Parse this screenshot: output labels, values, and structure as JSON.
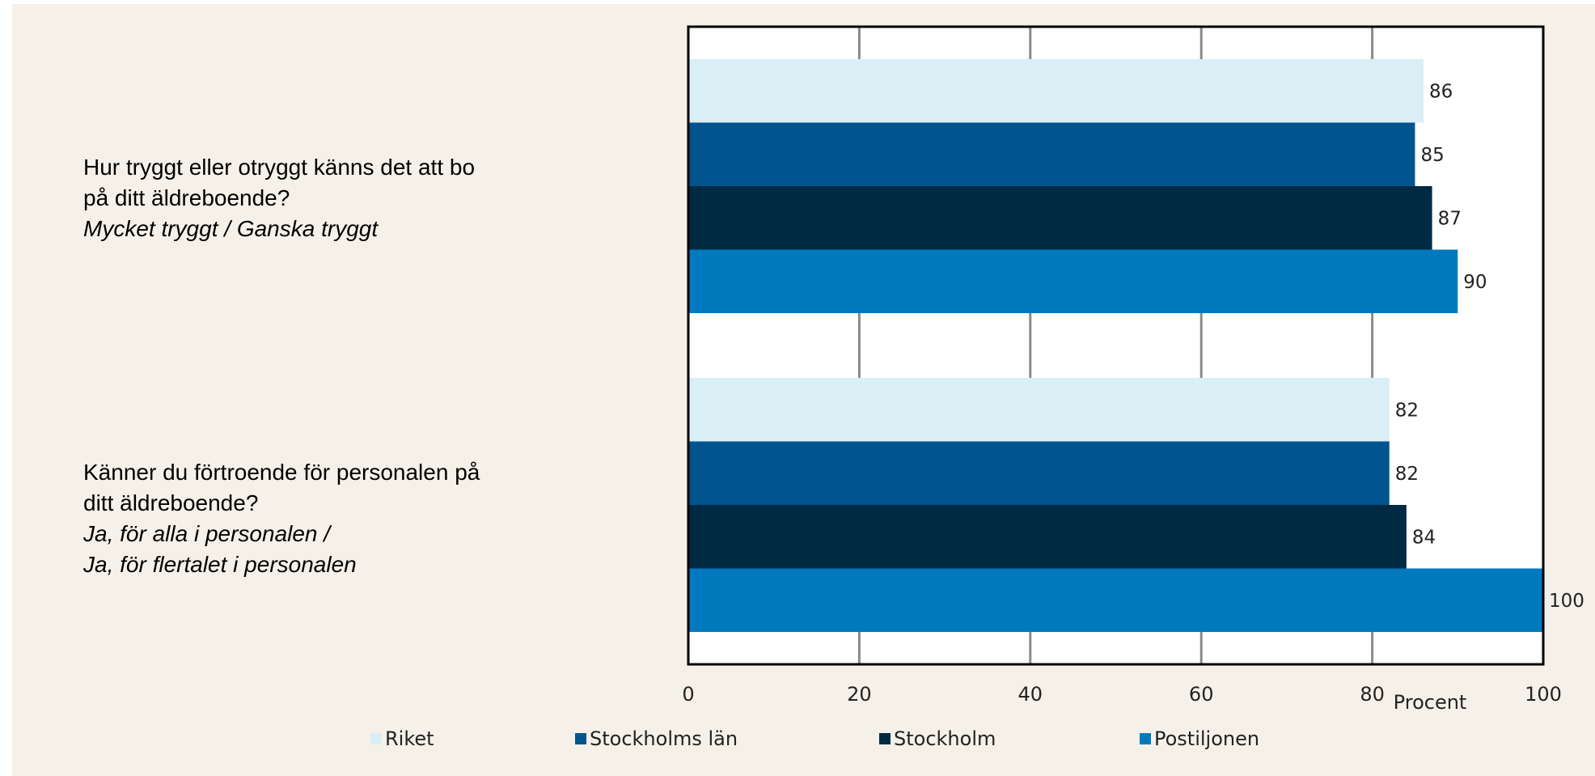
{
  "questions": [
    {
      "lines": [
        "Hur tryggt eller otryggt känns det att bo",
        "på ditt äldreboende?"
      ],
      "answer_lines": [
        "Mycket tryggt / Ganska tryggt"
      ]
    },
    {
      "lines": [
        "Känner du förtroende för personalen på",
        "ditt äldreboende?"
      ],
      "answer_lines": [
        "Ja, för alla i personalen /",
        "Ja, för flertalet i personalen"
      ]
    }
  ],
  "chart_data": {
    "type": "bar",
    "orientation": "horizontal",
    "categories": [
      "Hur tryggt eller otryggt känns det att bo på ditt äldreboende? Mycket tryggt / Ganska tryggt",
      "Känner du förtroende för personalen på ditt äldreboende? Ja, för alla i personalen / Ja, för flertalet i personalen"
    ],
    "series": [
      {
        "name": "Riket",
        "color": "#daeef6",
        "values": [
          86,
          82
        ]
      },
      {
        "name": "Stockholms län",
        "color": "#00558f",
        "values": [
          85,
          82
        ]
      },
      {
        "name": "Stockholm",
        "color": "#002a43",
        "values": [
          87,
          84
        ]
      },
      {
        "name": "Postiljonen",
        "color": "#0079bf",
        "values": [
          90,
          100
        ]
      }
    ],
    "xlabel": "Procent",
    "xlim": [
      0,
      100
    ],
    "xticks": [
      "0",
      "20",
      "40",
      "60",
      "80",
      "100"
    ],
    "grid": true,
    "data_labels": true,
    "legend_position": "bottom"
  }
}
